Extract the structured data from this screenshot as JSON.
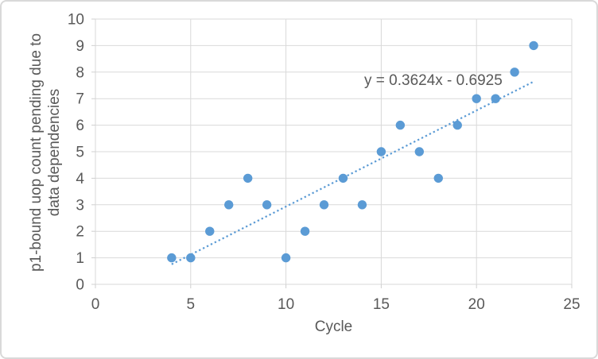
{
  "chart_data": {
    "type": "scatter",
    "xlabel": "Cycle",
    "ylabel": "p1-bound uop count pending due to data dependencies",
    "ylabel_lines": [
      "p1-bound uop count pending due to",
      "data dependencies"
    ],
    "x": [
      4,
      5,
      6,
      7,
      8,
      9,
      10,
      11,
      12,
      13,
      14,
      15,
      16,
      17,
      18,
      19,
      20,
      21,
      22,
      23
    ],
    "y": [
      1,
      1,
      2,
      3,
      4,
      3,
      1,
      2,
      3,
      4,
      3,
      5,
      6,
      5,
      4,
      6,
      7,
      7,
      8,
      9
    ],
    "xlim": [
      0,
      25
    ],
    "ylim": [
      0,
      10
    ],
    "xticks": [
      0,
      5,
      10,
      15,
      20,
      25
    ],
    "yticks": [
      0,
      1,
      2,
      3,
      4,
      5,
      6,
      7,
      8,
      9,
      10
    ],
    "grid": true,
    "legend": "none",
    "trendline": {
      "equation": "y = 0.3624x - 0.6925",
      "slope": 0.3624,
      "intercept": -0.6925,
      "x_start": 4,
      "x_end": 23,
      "style": "dotted"
    },
    "colors": {
      "marker": "#5B9BD5",
      "trendline": "#5B9BD5",
      "gridline": "#D9D9D9",
      "axis_line": "#D0D0D0",
      "text": "#595959"
    }
  }
}
